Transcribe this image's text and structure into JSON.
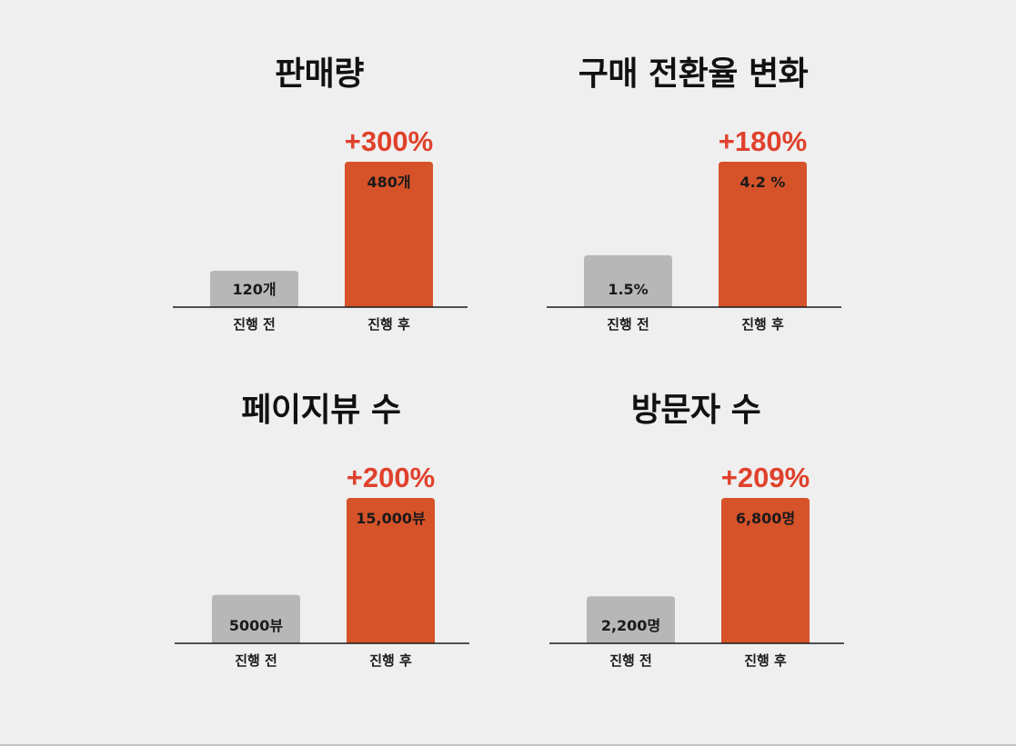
{
  "colors": {
    "before": "#b7b7b7",
    "after": "#d6532a",
    "increase_text": "#e0412c",
    "axis": "#1a1a1a"
  },
  "chart_data": [
    {
      "type": "bar",
      "title": "판매량",
      "categories": [
        "진행 전",
        "진행 후"
      ],
      "values": [
        120,
        480
      ],
      "value_labels": [
        "120개",
        "480개"
      ],
      "increase_label": "+300%",
      "ylim": [
        0,
        480
      ]
    },
    {
      "type": "bar",
      "title": "구매 전환율 변화",
      "categories": [
        "진행 전",
        "진행 후"
      ],
      "values": [
        1.5,
        4.2
      ],
      "value_labels": [
        "1.5%",
        "4.2 %"
      ],
      "increase_label": "+180%",
      "ylim": [
        0,
        4.2
      ]
    },
    {
      "type": "bar",
      "title": "페이지뷰 수",
      "categories": [
        "진행 전",
        "진행 후"
      ],
      "values": [
        5000,
        15000
      ],
      "value_labels": [
        "5000뷰",
        "15,000뷰"
      ],
      "increase_label": "+200%",
      "ylim": [
        0,
        15000
      ]
    },
    {
      "type": "bar",
      "title": "방문자 수",
      "categories": [
        "진행 전",
        "진행 후"
      ],
      "values": [
        2200,
        6800
      ],
      "value_labels": [
        "2,200명",
        "6,800명"
      ],
      "increase_label": "+209%",
      "ylim": [
        0,
        6800
      ]
    }
  ]
}
